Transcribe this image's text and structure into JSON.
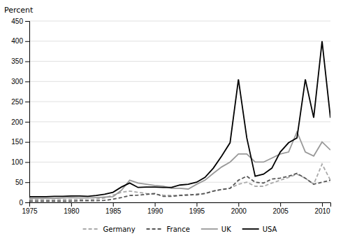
{
  "chart_data": {
    "type": "line",
    "y_label": "Percent",
    "x": [
      1975,
      1976,
      1977,
      1978,
      1979,
      1980,
      1981,
      1982,
      1983,
      1984,
      1985,
      1986,
      1987,
      1988,
      1989,
      1990,
      1991,
      1992,
      1993,
      1994,
      1995,
      1996,
      1997,
      1998,
      1999,
      2000,
      2001,
      2002,
      2003,
      2004,
      2005,
      2006,
      2007,
      2008,
      2009,
      2010,
      2011
    ],
    "series": [
      {
        "name": "Germany",
        "color": "#aaaaaa",
        "line_style": "dashed",
        "values": [
          7,
          7,
          6,
          6,
          7,
          7,
          7,
          6,
          8,
          11,
          18,
          25,
          28,
          25,
          22,
          20,
          18,
          17,
          18,
          20,
          18,
          22,
          28,
          32,
          35,
          45,
          50,
          40,
          40,
          48,
          55,
          62,
          70,
          60,
          45,
          95,
          55
        ]
      },
      {
        "name": "France",
        "color": "#555555",
        "line_style": "dashed",
        "values": [
          3,
          3,
          3,
          3,
          3,
          3,
          4,
          4,
          4,
          5,
          8,
          12,
          17,
          18,
          20,
          22,
          15,
          15,
          17,
          18,
          20,
          22,
          28,
          32,
          35,
          55,
          65,
          50,
          48,
          58,
          60,
          65,
          72,
          60,
          45,
          50,
          55
        ]
      },
      {
        "name": "UK",
        "color": "#999999",
        "line_style": "solid",
        "values": [
          10,
          10,
          10,
          10,
          11,
          12,
          11,
          11,
          12,
          13,
          14,
          30,
          55,
          48,
          45,
          42,
          40,
          35,
          35,
          33,
          45,
          55,
          72,
          88,
          100,
          120,
          120,
          100,
          100,
          110,
          120,
          125,
          175,
          125,
          115,
          150,
          130
        ]
      },
      {
        "name": "USA",
        "color": "#000000",
        "line_style": "solid",
        "values": [
          14,
          14,
          14,
          15,
          15,
          16,
          16,
          15,
          17,
          20,
          25,
          38,
          48,
          37,
          38,
          38,
          37,
          37,
          43,
          45,
          50,
          62,
          85,
          115,
          148,
          305,
          160,
          65,
          70,
          85,
          125,
          148,
          160,
          305,
          210,
          400,
          210
        ]
      }
    ],
    "xlim": [
      1975,
      2011
    ],
    "xticks": [
      1975,
      1980,
      1985,
      1990,
      1995,
      2000,
      2005,
      2010
    ],
    "ylim": [
      0,
      450
    ],
    "yticks": [
      0,
      50,
      100,
      150,
      200,
      250,
      300,
      350,
      400,
      450
    ],
    "grid": true,
    "legend": "bottom"
  }
}
